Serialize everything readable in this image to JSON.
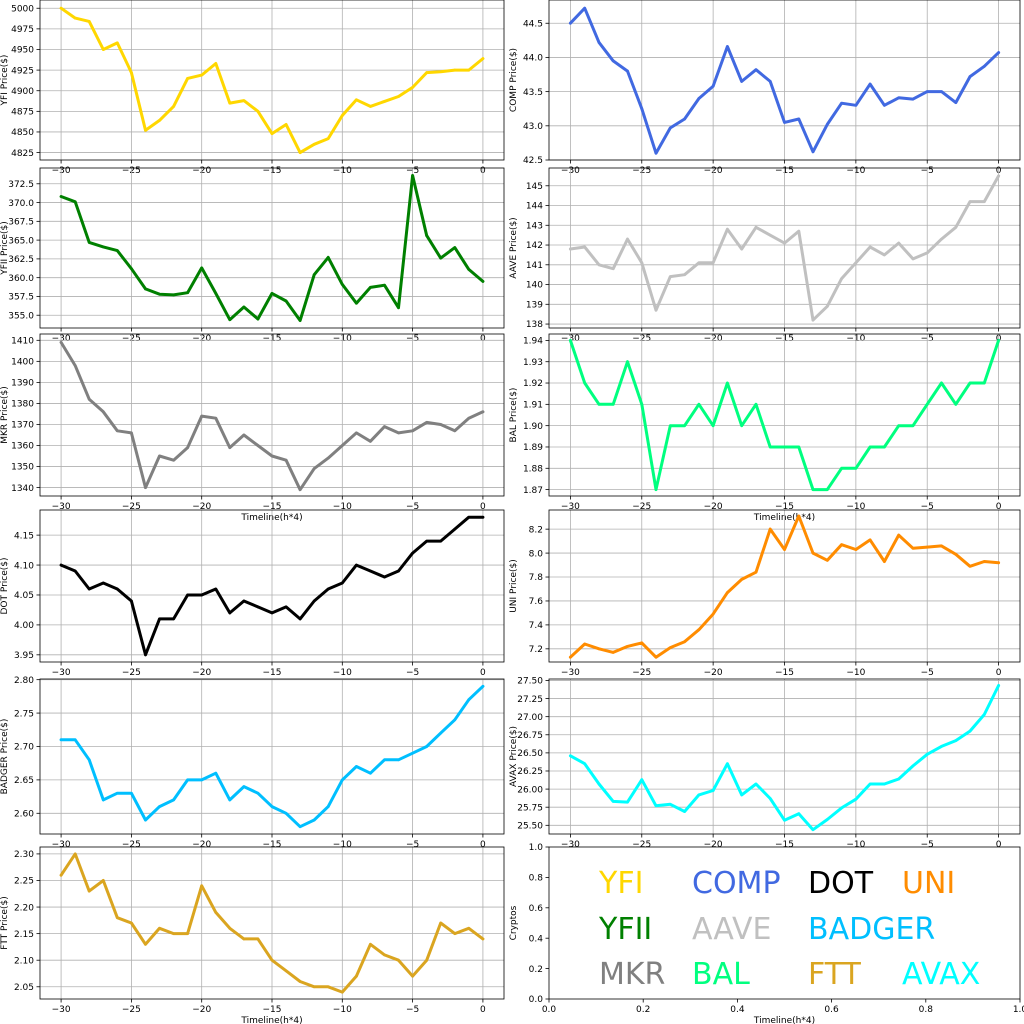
{
  "chart_data": [
    {
      "id": "yfi",
      "type": "line",
      "color": "#FFD700",
      "ylabel": "YFI Price($)",
      "xlabel": "",
      "x": [
        -30,
        -29,
        -28,
        -27,
        -26,
        -25,
        -24,
        -23,
        -22,
        -21,
        -20,
        -19,
        -18,
        -17,
        -16,
        -15,
        -14,
        -13,
        -12,
        -11,
        -10,
        -9,
        -8,
        -7,
        -6,
        -5,
        -4,
        -3,
        -2,
        -1,
        0
      ],
      "values": [
        5000,
        4988,
        4984,
        4950,
        4958,
        4922,
        4852,
        4864,
        4881,
        4915,
        4919,
        4933,
        4885,
        4888,
        4875,
        4848,
        4859,
        4825,
        4835,
        4842,
        4870,
        4889,
        4881,
        4887,
        4893,
        4904,
        4922,
        4923,
        4925,
        4925,
        4939
      ],
      "xticks": [
        -30,
        -25,
        -20,
        -15,
        -10,
        -5,
        0
      ],
      "yticks": [
        4825,
        4850,
        4875,
        4900,
        4925,
        4950,
        4975,
        5000
      ],
      "ytick_labels": [
        "4825",
        "4850",
        "4875",
        "4900",
        "4925",
        "4950",
        "4975",
        "5000"
      ],
      "xlim": [
        -31.5,
        1.5
      ],
      "ylim": [
        4816,
        5010
      ],
      "grid": true
    },
    {
      "id": "comp",
      "type": "line",
      "color": "#4169E1",
      "ylabel": "COMP Price($)",
      "xlabel": "",
      "x": [
        -30,
        -29,
        -28,
        -27,
        -26,
        -25,
        -24,
        -23,
        -22,
        -21,
        -20,
        -19,
        -18,
        -17,
        -16,
        -15,
        -14,
        -13,
        -12,
        -11,
        -10,
        -9,
        -8,
        -7,
        -6,
        -5,
        -4,
        -3,
        -2,
        -1,
        0
      ],
      "values": [
        44.5,
        44.72,
        44.22,
        43.95,
        43.8,
        43.25,
        42.6,
        42.97,
        43.1,
        43.4,
        43.58,
        44.16,
        43.65,
        43.82,
        43.65,
        43.05,
        43.1,
        42.62,
        43.02,
        43.33,
        43.3,
        43.61,
        43.3,
        43.41,
        43.39,
        43.5,
        43.5,
        43.34,
        43.72,
        43.87,
        44.07
      ],
      "xticks": [
        -30,
        -25,
        -20,
        -15,
        -10,
        -5,
        0
      ],
      "yticks": [
        42.5,
        43.0,
        43.5,
        44.0,
        44.5
      ],
      "ytick_labels": [
        "42.5",
        "43.0",
        "43.5",
        "44.0",
        "44.5"
      ],
      "xlim": [
        -31.5,
        1.5
      ],
      "ylim": [
        42.5,
        44.84
      ],
      "grid": true
    },
    {
      "id": "yfii",
      "type": "line",
      "color": "#008000",
      "ylabel": "YFII Price($)",
      "xlabel": "",
      "x": [
        -30,
        -29,
        -28,
        -27,
        -26,
        -25,
        -24,
        -23,
        -22,
        -21,
        -20,
        -19,
        -18,
        -17,
        -16,
        -15,
        -14,
        -13,
        -12,
        -11,
        -10,
        -9,
        -8,
        -7,
        -6,
        -5,
        -4,
        -3,
        -2,
        -1,
        0
      ],
      "values": [
        370.8,
        370.1,
        364.7,
        364.1,
        363.6,
        361.2,
        358.5,
        357.8,
        357.7,
        358,
        361.3,
        357.9,
        354.4,
        356.1,
        354.5,
        357.9,
        356.9,
        354.3,
        360.4,
        362.7,
        359.1,
        356.6,
        358.7,
        359,
        356,
        373.6,
        365.6,
        362.6,
        364,
        361.1,
        359.5
      ],
      "xticks": [
        -30,
        -25,
        -20,
        -15,
        -10,
        -5,
        0
      ],
      "yticks": [
        355.0,
        357.5,
        360.0,
        362.5,
        365.0,
        367.5,
        370.0,
        372.5
      ],
      "ytick_labels": [
        "355.0",
        "357.5",
        "360.0",
        "362.5",
        "365.0",
        "367.5",
        "370.0",
        "372.5"
      ],
      "xlim": [
        -31.5,
        1.5
      ],
      "ylim": [
        353.3,
        374.6
      ],
      "grid": true
    },
    {
      "id": "aave",
      "type": "line",
      "color": "#C0C0C0",
      "ylabel": "AAVE Price($)",
      "xlabel": "",
      "x": [
        -30,
        -29,
        -28,
        -27,
        -26,
        -25,
        -24,
        -23,
        -22,
        -21,
        -20,
        -19,
        -18,
        -17,
        -16,
        -15,
        -14,
        -13,
        -12,
        -11,
        -10,
        -9,
        -8,
        -7,
        -6,
        -5,
        -4,
        -3,
        -2,
        -1,
        0
      ],
      "values": [
        141.8,
        141.9,
        141,
        140.8,
        142.3,
        141.1,
        138.7,
        140.4,
        140.5,
        141.1,
        141.1,
        142.8,
        141.8,
        142.9,
        142.5,
        142.1,
        142.7,
        138.2,
        138.9,
        140.3,
        141.1,
        141.9,
        141.5,
        142.1,
        141.3,
        141.6,
        142.3,
        142.9,
        144.2,
        144.2,
        145.5
      ],
      "xticks": [
        -30,
        -25,
        -20,
        -15,
        -10,
        -5,
        0
      ],
      "yticks": [
        138,
        139,
        140,
        141,
        142,
        143,
        144,
        145
      ],
      "ytick_labels": [
        "138",
        "139",
        "140",
        "141",
        "142",
        "143",
        "144",
        "145"
      ],
      "xlim": [
        -31.5,
        1.5
      ],
      "ylim": [
        137.8,
        145.9
      ],
      "grid": true
    },
    {
      "id": "mkr",
      "type": "line",
      "color": "#808080",
      "ylabel": "MKR Price($)",
      "xlabel": "Timeline(h*4)",
      "x": [
        -30,
        -29,
        -28,
        -27,
        -26,
        -25,
        -24,
        -23,
        -22,
        -21,
        -20,
        -19,
        -18,
        -17,
        -16,
        -15,
        -14,
        -13,
        -12,
        -11,
        -10,
        -9,
        -8,
        -7,
        -6,
        -5,
        -4,
        -3,
        -2,
        -1,
        0
      ],
      "values": [
        1409,
        1398,
        1382,
        1376,
        1367,
        1366,
        1340,
        1355,
        1353,
        1359,
        1374,
        1373,
        1359,
        1365,
        1360,
        1355,
        1353,
        1339,
        1349,
        1354,
        1360,
        1366,
        1362,
        1369,
        1366,
        1367,
        1371,
        1370,
        1367,
        1373,
        1376
      ],
      "xticks": [
        -30,
        -25,
        -20,
        -15,
        -10,
        -5,
        0
      ],
      "yticks": [
        1340,
        1350,
        1360,
        1370,
        1380,
        1390,
        1400,
        1410
      ],
      "ytick_labels": [
        "1340",
        "1350",
        "1360",
        "1370",
        "1380",
        "1390",
        "1400",
        "1410"
      ],
      "xlim": [
        -31.5,
        1.5
      ],
      "ylim": [
        1336,
        1413
      ],
      "grid": true
    },
    {
      "id": "bal",
      "type": "line",
      "color": "#00FF7F",
      "ylabel": "BAL Price($)",
      "xlabel": "Timeline(h*4)",
      "x": [
        -30,
        -29,
        -28,
        -27,
        -26,
        -25,
        -24,
        -23,
        -22,
        -21,
        -20,
        -19,
        -18,
        -17,
        -16,
        -15,
        -14,
        -13,
        -12,
        -11,
        -10,
        -9,
        -8,
        -7,
        -6,
        -5,
        -4,
        -3,
        -2,
        -1,
        0
      ],
      "values": [
        1.94,
        1.92,
        1.91,
        1.91,
        1.93,
        1.91,
        1.87,
        1.9,
        1.9,
        1.91,
        1.9,
        1.92,
        1.9,
        1.91,
        1.89,
        1.89,
        1.89,
        1.87,
        1.87,
        1.88,
        1.88,
        1.89,
        1.89,
        1.9,
        1.9,
        1.91,
        1.92,
        1.91,
        1.92,
        1.92,
        1.94
      ],
      "xticks": [
        -30,
        -25,
        -20,
        -15,
        -10,
        -5,
        0
      ],
      "yticks": [
        1.87,
        1.88,
        1.89,
        1.9,
        1.91,
        1.92,
        1.93,
        1.94
      ],
      "ytick_labels": [
        "1.87",
        "1.88",
        "1.89",
        "1.90",
        "1.91",
        "1.92",
        "1.93",
        "1.94"
      ],
      "xlim": [
        -31.5,
        1.5
      ],
      "ylim": [
        1.867,
        1.943
      ],
      "grid": true
    },
    {
      "id": "dot",
      "type": "line",
      "color": "#000000",
      "ylabel": "DOT Price($)",
      "xlabel": "",
      "x": [
        -30,
        -29,
        -28,
        -27,
        -26,
        -25,
        -24,
        -23,
        -22,
        -21,
        -20,
        -19,
        -18,
        -17,
        -16,
        -15,
        -14,
        -13,
        -12,
        -11,
        -10,
        -9,
        -8,
        -7,
        -6,
        -5,
        -4,
        -3,
        -2,
        -1,
        0
      ],
      "values": [
        4.1,
        4.09,
        4.06,
        4.07,
        4.06,
        4.04,
        3.95,
        4.01,
        4.01,
        4.05,
        4.05,
        4.06,
        4.02,
        4.04,
        4.03,
        4.02,
        4.03,
        4.01,
        4.04,
        4.06,
        4.07,
        4.1,
        4.09,
        4.08,
        4.09,
        4.12,
        4.14,
        4.14,
        4.16,
        4.18,
        4.18
      ],
      "xticks": [
        -30,
        -25,
        -20,
        -15,
        -10,
        -5,
        0
      ],
      "yticks": [
        3.95,
        4.0,
        4.05,
        4.1,
        4.15
      ],
      "ytick_labels": [
        "3.95",
        "4.00",
        "4.05",
        "4.10",
        "4.15"
      ],
      "xlim": [
        -31.5,
        1.5
      ],
      "ylim": [
        3.938,
        4.192
      ],
      "grid": true
    },
    {
      "id": "uni",
      "type": "line",
      "color": "#FF8C00",
      "ylabel": "UNI Price($)",
      "xlabel": "",
      "x": [
        -30,
        -29,
        -28,
        -27,
        -26,
        -25,
        -24,
        -23,
        -22,
        -21,
        -20,
        -19,
        -18,
        -17,
        -16,
        -15,
        -14,
        -13,
        -12,
        -11,
        -10,
        -9,
        -8,
        -7,
        -6,
        -5,
        -4,
        -3,
        -2,
        -1,
        0
      ],
      "values": [
        7.13,
        7.24,
        7.2,
        7.17,
        7.22,
        7.25,
        7.13,
        7.21,
        7.26,
        7.36,
        7.49,
        7.67,
        7.78,
        7.84,
        8.2,
        8.03,
        8.31,
        8.0,
        7.94,
        8.07,
        8.03,
        8.11,
        7.93,
        8.15,
        8.04,
        8.05,
        8.06,
        7.99,
        7.89,
        7.93,
        7.92
      ],
      "xticks": [
        -30,
        -25,
        -20,
        -15,
        -10,
        -5,
        0
      ],
      "yticks": [
        7.2,
        7.4,
        7.6,
        7.8,
        8.0,
        8.2
      ],
      "ytick_labels": [
        "7.2",
        "7.4",
        "7.6",
        "7.8",
        "8.0",
        "8.2"
      ],
      "xlim": [
        -31.5,
        1.5
      ],
      "ylim": [
        7.09,
        8.36
      ],
      "grid": true
    },
    {
      "id": "badger",
      "type": "line",
      "color": "#00BFFF",
      "ylabel": "BADGER Price($)",
      "xlabel": "",
      "x": [
        -30,
        -29,
        -28,
        -27,
        -26,
        -25,
        -24,
        -23,
        -22,
        -21,
        -20,
        -19,
        -18,
        -17,
        -16,
        -15,
        -14,
        -13,
        -12,
        -11,
        -10,
        -9,
        -8,
        -7,
        -6,
        -5,
        -4,
        -3,
        -2,
        -1,
        0
      ],
      "values": [
        2.71,
        2.71,
        2.68,
        2.62,
        2.63,
        2.63,
        2.59,
        2.61,
        2.62,
        2.65,
        2.65,
        2.66,
        2.62,
        2.64,
        2.63,
        2.61,
        2.6,
        2.58,
        2.59,
        2.61,
        2.65,
        2.67,
        2.66,
        2.68,
        2.68,
        2.69,
        2.7,
        2.72,
        2.74,
        2.77,
        2.79
      ],
      "xticks": [
        -30,
        -25,
        -20,
        -15,
        -10,
        -5,
        0
      ],
      "yticks": [
        2.6,
        2.65,
        2.7,
        2.75,
        2.8
      ],
      "ytick_labels": [
        "2.60",
        "2.65",
        "2.70",
        "2.75",
        "2.80"
      ],
      "xlim": [
        -31.5,
        1.5
      ],
      "ylim": [
        2.569,
        2.801
      ],
      "grid": true
    },
    {
      "id": "avax",
      "type": "line",
      "color": "#00FFFF",
      "ylabel": "AVAX Price($)",
      "xlabel": "",
      "x": [
        -30,
        -29,
        -28,
        -27,
        -26,
        -25,
        -24,
        -23,
        -22,
        -21,
        -20,
        -19,
        -18,
        -17,
        -16,
        -15,
        -14,
        -13,
        -12,
        -11,
        -10,
        -9,
        -8,
        -7,
        -6,
        -5,
        -4,
        -3,
        -2,
        -1,
        0
      ],
      "values": [
        26.46,
        26.35,
        26.07,
        25.83,
        25.82,
        26.13,
        25.77,
        25.79,
        25.69,
        25.92,
        25.98,
        26.35,
        25.92,
        26.07,
        25.87,
        25.57,
        25.66,
        25.44,
        25.58,
        25.74,
        25.86,
        26.07,
        26.07,
        26.14,
        26.32,
        26.48,
        26.59,
        26.67,
        26.8,
        27.03,
        27.43
      ],
      "xticks": [
        -30,
        -25,
        -20,
        -15,
        -10,
        -5,
        0
      ],
      "yticks": [
        25.5,
        25.75,
        26.0,
        26.25,
        26.5,
        26.75,
        27.0,
        27.25,
        27.5
      ],
      "ytick_labels": [
        "25.50",
        "25.75",
        "26.00",
        "26.25",
        "26.50",
        "26.75",
        "27.00",
        "27.25",
        "27.50"
      ],
      "xlim": [
        -31.5,
        1.5
      ],
      "ylim": [
        25.38,
        27.52
      ],
      "grid": true
    },
    {
      "id": "ftt",
      "type": "line",
      "color": "#DAA520",
      "ylabel": "FTT Price($)",
      "xlabel": "Timeline(h*4)",
      "x": [
        -30,
        -29,
        -28,
        -27,
        -26,
        -25,
        -24,
        -23,
        -22,
        -21,
        -20,
        -19,
        -18,
        -17,
        -16,
        -15,
        -14,
        -13,
        -12,
        -11,
        -10,
        -9,
        -8,
        -7,
        -6,
        -5,
        -4,
        -3,
        -2,
        -1,
        0
      ],
      "values": [
        2.26,
        2.3,
        2.23,
        2.25,
        2.18,
        2.17,
        2.13,
        2.16,
        2.15,
        2.15,
        2.24,
        2.19,
        2.16,
        2.14,
        2.14,
        2.1,
        2.08,
        2.06,
        2.05,
        2.05,
        2.04,
        2.07,
        2.13,
        2.11,
        2.1,
        2.07,
        2.1,
        2.17,
        2.15,
        2.16,
        2.14
      ],
      "xticks": [
        -30,
        -25,
        -20,
        -15,
        -10,
        -5,
        0
      ],
      "yticks": [
        2.05,
        2.1,
        2.15,
        2.2,
        2.25,
        2.3
      ],
      "ytick_labels": [
        "2.05",
        "2.10",
        "2.15",
        "2.20",
        "2.25",
        "2.30"
      ],
      "xlim": [
        -31.5,
        1.5
      ],
      "ylim": [
        2.027,
        2.313
      ],
      "grid": true
    },
    {
      "id": "legend",
      "type": "legend",
      "ylabel": "Cryptos",
      "xlabel": "Timeline(h*4)",
      "xticks": [
        0.0,
        0.2,
        0.4,
        0.6,
        0.8,
        1.0
      ],
      "xtick_labels": [
        "0.0",
        "0.2",
        "0.4",
        "0.6",
        "0.8",
        "1.0"
      ],
      "yticks": [
        0.0,
        0.2,
        0.4,
        0.6,
        0.8,
        1.0
      ],
      "ytick_labels": [
        "0.0",
        "0.2",
        "0.4",
        "0.6",
        "0.8",
        "1.0"
      ],
      "xlim": [
        0,
        1
      ],
      "ylim": [
        0,
        1
      ],
      "grid": false,
      "entries": [
        {
          "label": "YFI",
          "color": "#FFD700"
        },
        {
          "label": "COMP",
          "color": "#4169E1"
        },
        {
          "label": "DOT",
          "color": "#000000"
        },
        {
          "label": "UNI",
          "color": "#FF8C00"
        },
        {
          "label": "YFII",
          "color": "#008000"
        },
        {
          "label": "AAVE",
          "color": "#C0C0C0"
        },
        {
          "label": "BADGER",
          "color": "#00BFFF"
        },
        {
          "label": "MKR",
          "color": "#808080"
        },
        {
          "label": "BAL",
          "color": "#00FF7F"
        },
        {
          "label": "FTT",
          "color": "#DAA520"
        },
        {
          "label": "AVAX",
          "color": "#00FFFF"
        }
      ]
    }
  ]
}
